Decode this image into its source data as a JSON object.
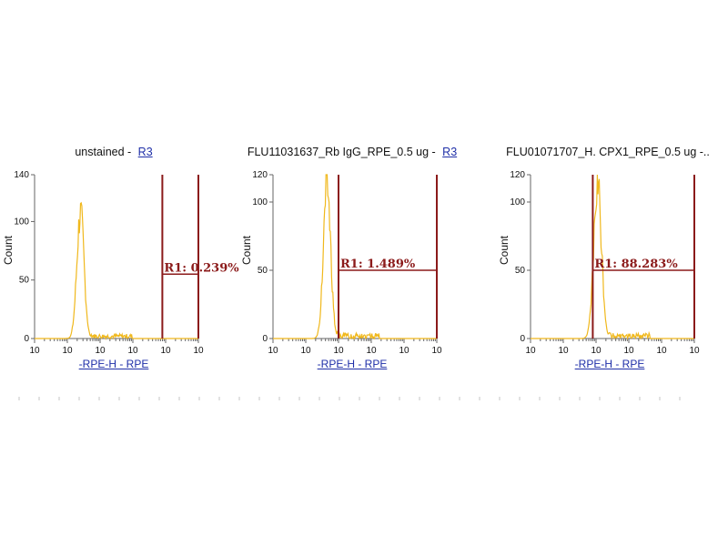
{
  "chart_data": [
    {
      "type": "histogram",
      "title_main": "unstained - ",
      "title_gate": "R3",
      "ylabel": "Count",
      "xlabel": "-RPE-H - RPE",
      "ylim": [
        0,
        140
      ],
      "yticks": [
        {
          "value": 0,
          "label": "0"
        },
        {
          "value": 50,
          "label": "50"
        },
        {
          "value": 100,
          "label": "100"
        },
        {
          "value": 140,
          "label": "140"
        }
      ],
      "xscale": "log",
      "xlim": [
        1,
        100000
      ],
      "xtick_labels": [
        "10",
        "10",
        "10",
        "10",
        "10",
        "10"
      ],
      "peak_center": 1.4,
      "peak_width": 0.11,
      "peak_height": 110,
      "region": {
        "label": "R1: 0.239%",
        "x_start": 3.9,
        "x_end": 5.0,
        "y": 55
      }
    },
    {
      "type": "histogram",
      "title_main": "FLU11031637_Rb IgG_RPE_0.5 ug - ",
      "title_gate": "R3",
      "ylabel": "Count",
      "xlabel": "-RPE-H - RPE",
      "ylim": [
        0,
        120
      ],
      "yticks": [
        {
          "value": 0,
          "label": "0"
        },
        {
          "value": 50,
          "label": "50"
        },
        {
          "value": 100,
          "label": "100"
        },
        {
          "value": 120,
          "label": "120"
        }
      ],
      "xscale": "log",
      "xlim": [
        1,
        100000
      ],
      "xtick_labels": [
        "10",
        "10",
        "10",
        "10",
        "10",
        "10"
      ],
      "peak_center": 1.65,
      "peak_width": 0.11,
      "peak_height": 116,
      "region": {
        "label": "R1: 1.489%",
        "x_start": 2.0,
        "x_end": 5.0,
        "y": 50
      }
    },
    {
      "type": "histogram",
      "title_main": "FLU01071707_H. CPX1_RPE_0.5 ug -..",
      "title_gate": "",
      "ylabel": "Count",
      "xlabel": "-RPE-H - RPE",
      "ylim": [
        0,
        120
      ],
      "yticks": [
        {
          "value": 0,
          "label": "0"
        },
        {
          "value": 50,
          "label": "50"
        },
        {
          "value": 100,
          "label": "100"
        },
        {
          "value": 120,
          "label": "120"
        }
      ],
      "xscale": "log",
      "xlim": [
        1,
        100000
      ],
      "xtick_labels": [
        "10",
        "10",
        "10",
        "10",
        "10",
        "10"
      ],
      "peak_center": 2.05,
      "peak_width": 0.12,
      "peak_height": 116,
      "region": {
        "label": "R1: 88.283%",
        "x_start": 1.9,
        "x_end": 5.0,
        "y": 50
      }
    }
  ],
  "colors": {
    "histogram": "#f0b81c",
    "region": "#8b1a1a",
    "axis": "#666666",
    "link": "#1f2fa8"
  }
}
